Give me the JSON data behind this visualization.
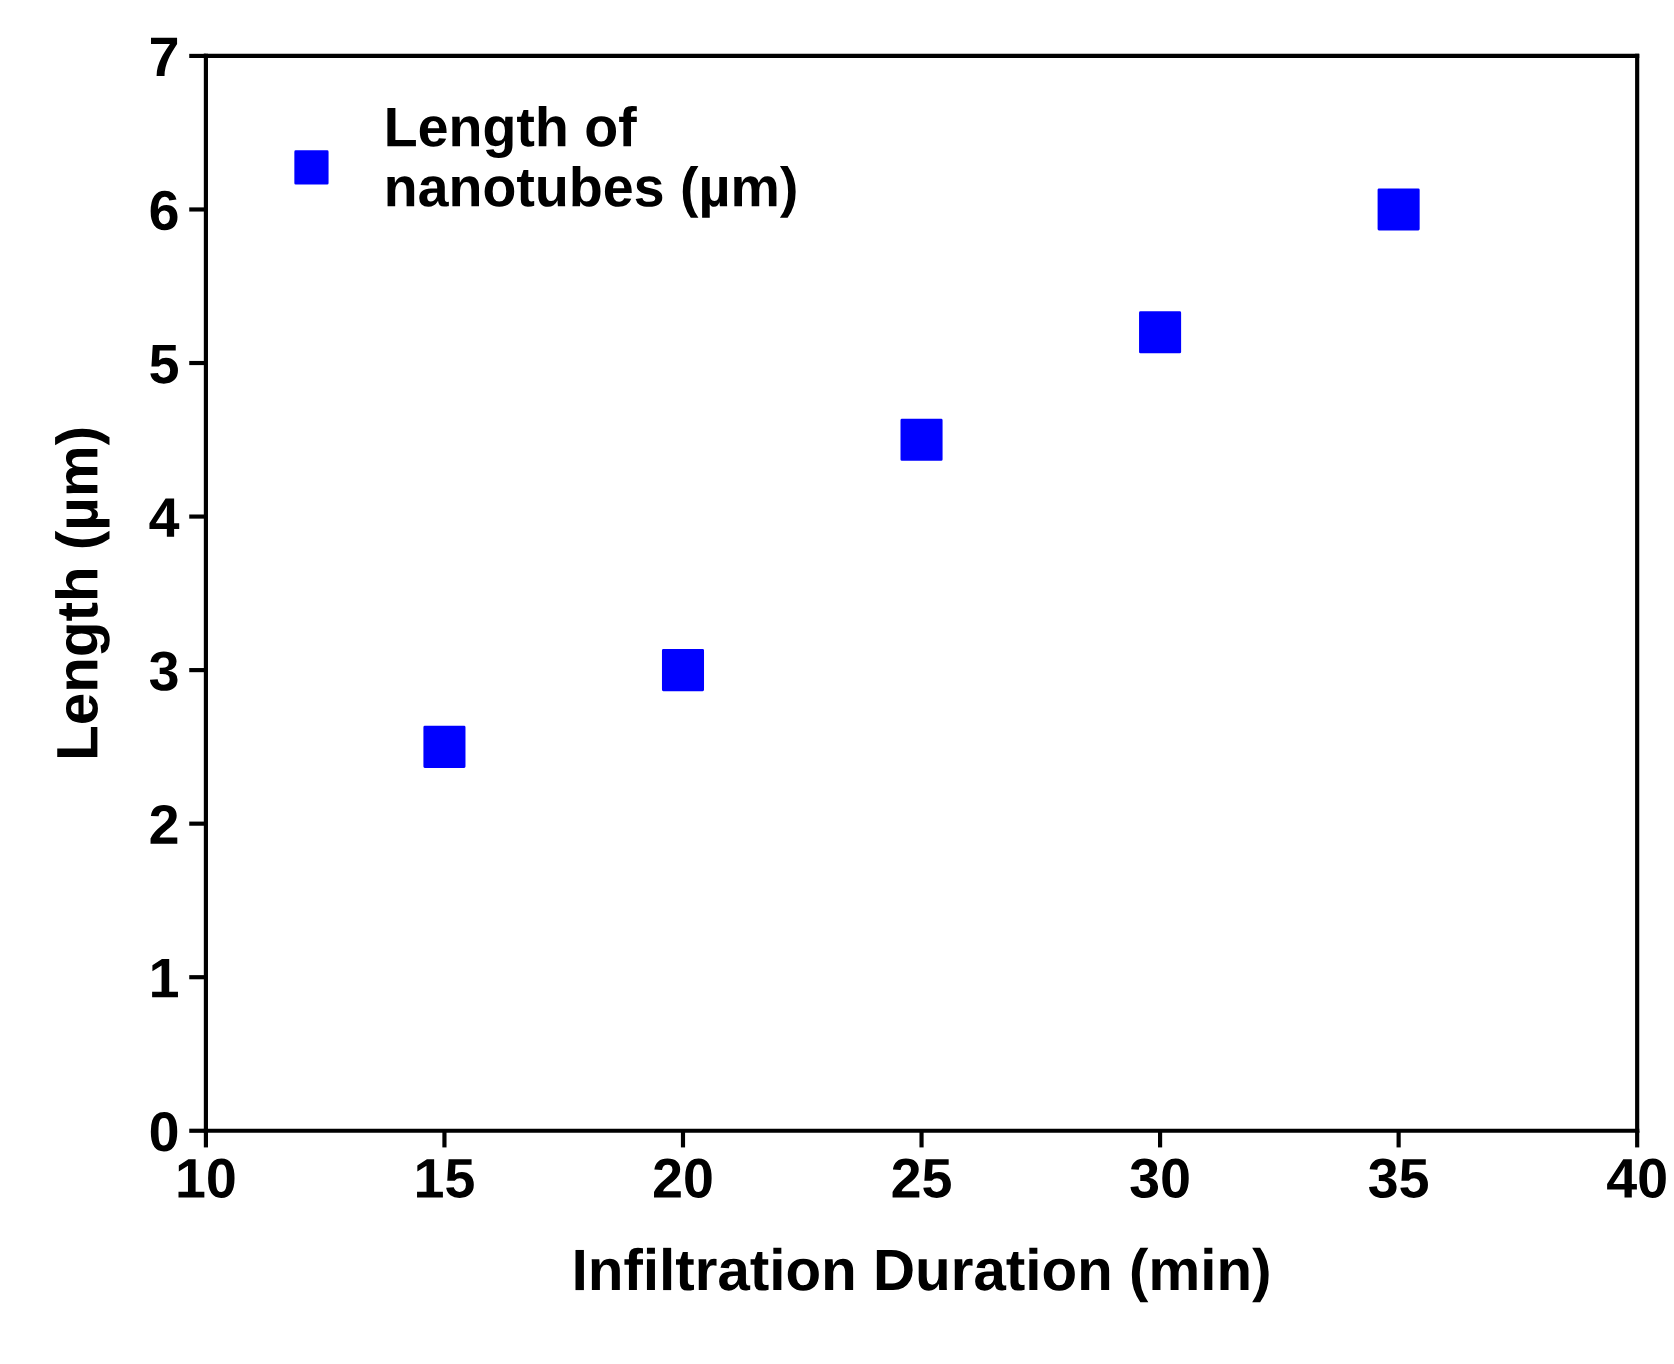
{
  "chart_data": {
    "type": "scatter",
    "xlabel": "Infiltration Duration (min)",
    "ylabel": "Length (µm)",
    "x": [
      15,
      20,
      25,
      30,
      35
    ],
    "series": [
      {
        "name": "Length of\nnanotubes (µm)",
        "color": "#0000ff",
        "values": [
          2.5,
          3.0,
          4.5,
          5.2,
          6.0
        ]
      }
    ],
    "xlim": [
      10,
      40
    ],
    "xticks": [
      10,
      15,
      20,
      25,
      30,
      35,
      40
    ],
    "ylim": [
      0,
      7
    ],
    "yticks": [
      0,
      1,
      2,
      3,
      4,
      5,
      6,
      7
    ],
    "marker": "square",
    "legend": "top left",
    "grid": false
  }
}
